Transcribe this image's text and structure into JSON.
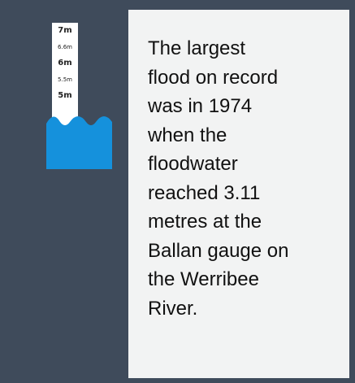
{
  "gauge": {
    "labels": [
      "7m",
      "6.6m",
      "6m",
      "5.5m",
      "5m"
    ]
  },
  "text": {
    "lines": [
      "The largest",
      "flood on record",
      "was in 1974",
      "when the",
      "floodwater",
      "reached 3.11",
      "metres at the",
      "Ballan gauge on",
      "the Werribee",
      "River."
    ]
  }
}
